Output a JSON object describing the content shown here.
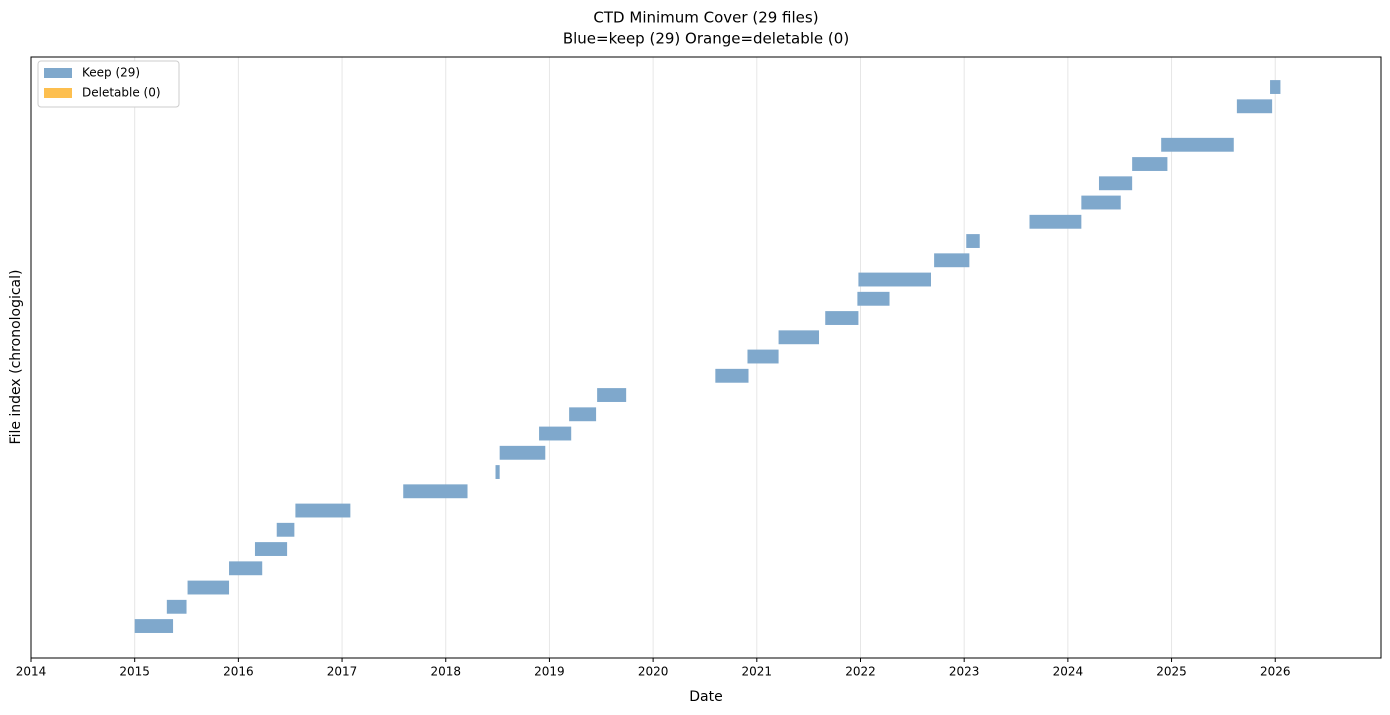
{
  "chart_data": {
    "type": "interval",
    "title": "CTD Minimum Cover (29 files)",
    "subtitle": "Blue=keep (29)  Orange=deletable (0)",
    "x_label": "Date",
    "y_label": "File index (chronological)",
    "xlim": [
      2014,
      2027.02
    ],
    "xticks": [
      2014,
      2015,
      2016,
      2017,
      2018,
      2019,
      2020,
      2021,
      2022,
      2023,
      2024,
      2025,
      2026
    ],
    "ylim": [
      -1.66,
      29.56
    ],
    "grid": true,
    "legend": "upper left",
    "series": [
      {
        "name": "Keep (29)",
        "color": "#7fa8cc",
        "start": [
          2015.0,
          2015.31,
          2015.51,
          2015.91,
          2016.16,
          2016.37,
          2016.55,
          2017.59,
          2018.48,
          2018.52,
          2018.9,
          2019.19,
          2019.46,
          2020.6,
          2020.91,
          2021.21,
          2021.66,
          2021.97,
          2021.98,
          2022.71,
          2023.02,
          2023.63,
          2024.13,
          2024.3,
          2024.62,
          2024.9,
          null,
          2025.63,
          2025.95
        ],
        "end": [
          2015.37,
          2015.5,
          2015.91,
          2016.23,
          2016.47,
          2016.54,
          2017.08,
          2018.21,
          2018.52,
          2018.96,
          2019.21,
          2019.45,
          2019.74,
          2020.92,
          2021.21,
          2021.6,
          2021.98,
          2022.28,
          2022.68,
          2023.05,
          2023.15,
          2024.13,
          2024.51,
          2024.62,
          2024.96,
          2025.6,
          null,
          2025.97,
          2026.05
        ]
      },
      {
        "name": "Deletable (0)",
        "color": "#fdbf4f",
        "start": [],
        "end": []
      }
    ]
  }
}
